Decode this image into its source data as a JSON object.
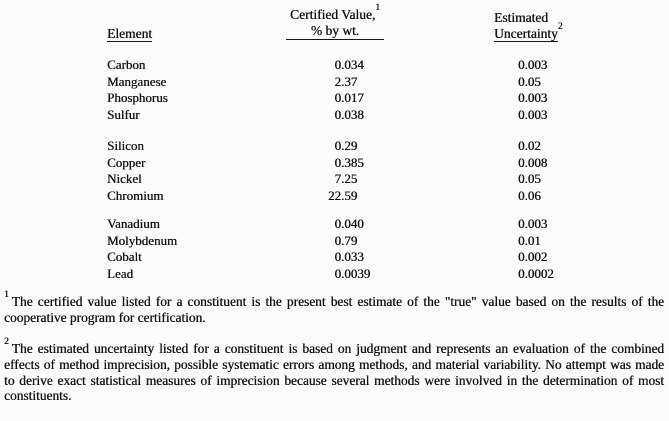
{
  "table": {
    "headers": {
      "element": "Element",
      "certified_line1": "Certified Value,",
      "certified_sup": "1",
      "certified_line2": "% by wt.",
      "uncertainty_line1": "Estimated",
      "uncertainty_line2": "Uncertainty",
      "uncertainty_sup": "2"
    },
    "groups": [
      {
        "rows": [
          {
            "element": "Carbon",
            "certified_value": "0.034",
            "uncertainty": "0.003"
          },
          {
            "element": "Manganese",
            "certified_value": "2.37",
            "uncertainty": "0.05"
          },
          {
            "element": "Phosphorus",
            "certified_value": "0.017",
            "uncertainty": "0.003"
          },
          {
            "element": "Sulfur",
            "certified_value": "0.038",
            "uncertainty": "0.003"
          }
        ]
      },
      {
        "rows": [
          {
            "element": "Silicon",
            "certified_value": "0.29",
            "uncertainty": "0.02"
          },
          {
            "element": "Copper",
            "certified_value": "0.385",
            "uncertainty": "0.008"
          },
          {
            "element": "Nickel",
            "certified_value": "7.25",
            "uncertainty": "0.05"
          },
          {
            "element": "Chromium",
            "certified_value": "22.59",
            "uncertainty": "0.06"
          }
        ]
      },
      {
        "rows": [
          {
            "element": "Vanadium",
            "certified_value": "0.040",
            "uncertainty": "0.003"
          },
          {
            "element": "Molybdenum",
            "certified_value": "0.79",
            "uncertainty": "0.01"
          },
          {
            "element": "Cobalt",
            "certified_value": "0.033",
            "uncertainty": "0.002"
          },
          {
            "element": "Lead",
            "certified_value": "0.0039",
            "uncertainty": "0.0002"
          }
        ]
      }
    ]
  },
  "footnotes": [
    {
      "marker": "1",
      "text": "The certified value listed for a constituent is the present best estimate of the \"true\" value based on the results of the cooperative program for certification."
    },
    {
      "marker": "2",
      "text": "The estimated uncertainty listed for a constituent is based on judgment and represents an evaluation of the combined effects of method imprecision, possible systematic errors among methods, and material variability. No attempt was made to derive exact statistical measures of imprecision because several methods were involved in the determination of most constituents."
    }
  ],
  "colors": {
    "text": "#141414",
    "background": "#fcfcfc"
  }
}
